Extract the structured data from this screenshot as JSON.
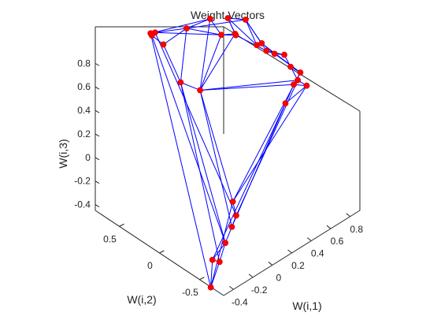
{
  "chart_data": {
    "type": "scatter",
    "projection": "3d",
    "title": "Weight Vectors",
    "xlabel": "W(i,1)",
    "ylabel": "W(i,2)",
    "zlabel": "W(i,3)",
    "xlim": [
      -0.5,
      0.9
    ],
    "ylim": [
      -0.8,
      0.8
    ],
    "zlim": [
      -0.45,
      0.95
    ],
    "xticks": [
      "-0.4",
      "-0.2",
      "0",
      "0.2",
      "0.4",
      "0.6",
      "0.8"
    ],
    "yticks": [
      "0.5",
      "0",
      "-0.5"
    ],
    "zticks": [
      "0.8",
      "0.6",
      "0.4",
      "0.2",
      "0",
      "-0.2",
      "-0.4"
    ],
    "grid": false,
    "box": "open",
    "marker_color": "#ff0000",
    "line_color": "#0000ff",
    "points": [
      {
        "x": -0.55,
        "y": -0.7,
        "z": -0.4
      },
      {
        "x": -0.5,
        "y": -0.66,
        "z": -0.21
      },
      {
        "x": -0.46,
        "y": -0.7,
        "z": -0.23
      },
      {
        "x": -0.4,
        "y": -0.7,
        "z": -0.1
      },
      {
        "x": -0.35,
        "y": -0.72,
        "z": 0.02
      },
      {
        "x": -0.33,
        "y": -0.75,
        "z": 0.12
      },
      {
        "x": -0.2,
        "y": -0.55,
        "z": 0.08
      },
      {
        "x": -0.05,
        "y": 0.6,
        "z": 0.92
      },
      {
        "x": -0.08,
        "y": 0.62,
        "z": 0.92
      },
      {
        "x": -0.1,
        "y": 0.58,
        "z": 0.93
      },
      {
        "x": -0.13,
        "y": 0.4,
        "z": 0.95
      },
      {
        "x": -0.2,
        "y": 0.1,
        "z": 0.8
      },
      {
        "x": 0.0,
        "y": 0.1,
        "z": 0.63
      },
      {
        "x": 0.15,
        "y": 0.45,
        "z": 0.92
      },
      {
        "x": 0.35,
        "y": 0.4,
        "z": 0.92
      },
      {
        "x": 0.3,
        "y": 0.2,
        "z": 0.9
      },
      {
        "x": 0.4,
        "y": 0.15,
        "z": 0.88
      },
      {
        "x": 0.45,
        "y": 0.3,
        "z": 0.92
      },
      {
        "x": 0.5,
        "y": 0.0,
        "z": 0.8
      },
      {
        "x": 0.55,
        "y": 0.2,
        "z": 0.9
      },
      {
        "x": 0.55,
        "y": 0.0,
        "z": 0.79
      },
      {
        "x": 0.6,
        "y": -0.1,
        "z": 0.72
      },
      {
        "x": 0.6,
        "y": 0.0,
        "z": 0.7
      },
      {
        "x": 0.45,
        "y": 0.2,
        "z": 0.82
      },
      {
        "x": 0.7,
        "y": -0.1,
        "z": 0.66
      },
      {
        "x": 0.6,
        "y": -0.3,
        "z": 0.7
      },
      {
        "x": 0.7,
        "y": -0.3,
        "z": 0.6
      },
      {
        "x": 0.55,
        "y": -0.4,
        "z": 0.62
      },
      {
        "x": 0.55,
        "y": -0.45,
        "z": 0.68
      },
      {
        "x": 0.6,
        "y": -0.5,
        "z": 0.63
      },
      {
        "x": 0.3,
        "y": -0.6,
        "z": 0.68
      }
    ],
    "connections": [
      [
        0,
        1
      ],
      [
        0,
        2
      ],
      [
        1,
        2
      ],
      [
        2,
        3
      ],
      [
        3,
        4
      ],
      [
        4,
        5
      ],
      [
        1,
        3
      ],
      [
        0,
        6
      ],
      [
        5,
        6
      ],
      [
        5,
        7
      ],
      [
        0,
        8
      ],
      [
        3,
        9
      ],
      [
        6,
        12
      ],
      [
        4,
        12
      ],
      [
        3,
        11
      ],
      [
        2,
        11
      ],
      [
        7,
        8
      ],
      [
        8,
        9
      ],
      [
        7,
        9
      ],
      [
        9,
        10
      ],
      [
        10,
        11
      ],
      [
        11,
        12
      ],
      [
        7,
        13
      ],
      [
        13,
        14
      ],
      [
        14,
        15
      ],
      [
        15,
        16
      ],
      [
        16,
        17
      ],
      [
        17,
        18
      ],
      [
        18,
        19
      ],
      [
        19,
        20
      ],
      [
        20,
        21
      ],
      [
        21,
        22
      ],
      [
        22,
        23
      ],
      [
        22,
        24
      ],
      [
        24,
        25
      ],
      [
        25,
        26
      ],
      [
        26,
        27
      ],
      [
        27,
        28
      ],
      [
        28,
        29
      ],
      [
        29,
        30
      ],
      [
        13,
        15
      ],
      [
        15,
        23
      ],
      [
        23,
        17
      ],
      [
        12,
        14
      ],
      [
        12,
        15
      ],
      [
        12,
        16
      ],
      [
        12,
        28
      ],
      [
        12,
        27
      ],
      [
        13,
        19
      ],
      [
        17,
        19
      ],
      [
        19,
        22
      ],
      [
        21,
        24
      ],
      [
        21,
        26
      ],
      [
        20,
        26
      ],
      [
        25,
        28
      ],
      [
        27,
        29
      ],
      [
        10,
        13
      ],
      [
        11,
        13
      ],
      [
        8,
        14
      ],
      [
        7,
        15
      ],
      [
        6,
        26
      ],
      [
        6,
        29
      ],
      [
        4,
        27
      ],
      [
        5,
        28
      ],
      [
        1,
        30
      ]
    ]
  }
}
